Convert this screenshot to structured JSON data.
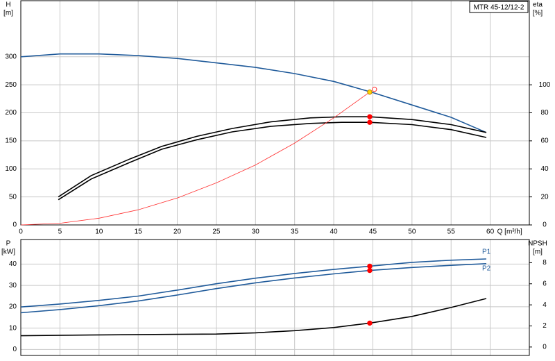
{
  "chart_data": [
    {
      "type": "line",
      "title": "MTR 45-12/12-2",
      "xlabel": "Q [m³/h]",
      "ylabel": [
        "H",
        "[m]"
      ],
      "y2label": [
        "eta",
        "[%]"
      ],
      "xlim": [
        0,
        65
      ],
      "xticks": [
        0,
        5,
        10,
        15,
        20,
        25,
        30,
        35,
        40,
        45,
        50,
        55,
        60
      ],
      "ylim": [
        0,
        400
      ],
      "yticks": [
        0,
        50,
        100,
        150,
        200,
        250,
        300
      ],
      "y2lim": [
        0,
        160
      ],
      "y2ticks": [
        0,
        20,
        40,
        60,
        80,
        100
      ],
      "grid": true,
      "series": [
        {
          "color": "#1f5a9a",
          "x": [
            0,
            5,
            10,
            15,
            20,
            25,
            30,
            35,
            40,
            45,
            50,
            55,
            59.5
          ],
          "values": [
            300,
            305,
            305,
            302,
            297,
            289,
            281,
            270,
            256,
            236,
            214,
            192,
            165
          ]
        },
        {
          "color": "#000000",
          "axis": "y2",
          "x": [
            4.8,
            9,
            14,
            18,
            22.5,
            27,
            32,
            37,
            41,
            44.6,
            50,
            55,
            59.5
          ],
          "values": [
            20,
            35.2,
            47.2,
            56,
            63.2,
            68.8,
            73.6,
            76.4,
            77.2,
            77.2,
            75.2,
            71.6,
            66
          ]
        },
        {
          "color": "#000000",
          "axis": "y2",
          "x": [
            4.8,
            9,
            14,
            18,
            22.5,
            27,
            32,
            37,
            41,
            44.6,
            50,
            55,
            59.5
          ],
          "values": [
            18,
            32.8,
            44.8,
            54,
            60.8,
            66.4,
            70.4,
            72.4,
            73.2,
            73.2,
            71.6,
            68,
            62.4
          ]
        },
        {
          "color": "#ff3030",
          "x": [
            0,
            5,
            10,
            15,
            20,
            25,
            30,
            35,
            40,
            44.6
          ],
          "values": [
            0,
            3,
            12,
            27,
            48,
            75,
            107,
            146,
            191,
            237
          ]
        }
      ],
      "markers": [
        {
          "x": 44.6,
          "y": 237,
          "color": "#ffd700"
        },
        {
          "x": 45.2,
          "y": 242,
          "color": "#ff3030",
          "hollow": true
        },
        {
          "x": 44.6,
          "y": 77.2,
          "axis": "y2",
          "color": "#ff0000"
        },
        {
          "x": 44.6,
          "y": 73.2,
          "axis": "y2",
          "color": "#ff0000"
        }
      ]
    },
    {
      "type": "line",
      "ylabel": [
        "P",
        "[kW]"
      ],
      "y2label": [
        "NPSH",
        "[m]"
      ],
      "xlim": [
        0,
        65
      ],
      "xticks": [
        0,
        5,
        10,
        15,
        20,
        25,
        30,
        35,
        40,
        45,
        50,
        55,
        60
      ],
      "ylim": [
        -2.8,
        51.5
      ],
      "yticks": [
        0,
        10,
        20,
        30,
        40
      ],
      "y2lim": [
        -0.8,
        10.2
      ],
      "y2ticks": [
        0,
        2,
        4,
        6,
        8
      ],
      "grid": true,
      "series": [
        {
          "name": "P1",
          "color": "#1f5a9a",
          "x": [
            0,
            5,
            10,
            15,
            20,
            25,
            30,
            35,
            40,
            44.6,
            50,
            55,
            59.5
          ],
          "values": [
            19.9,
            21.3,
            23,
            25,
            27.8,
            30.8,
            33.4,
            35.6,
            37.5,
            39,
            40.8,
            41.8,
            42.4
          ]
        },
        {
          "name": "P2",
          "color": "#1f5a9a",
          "x": [
            0,
            5,
            10,
            15,
            20,
            25,
            30,
            35,
            40,
            44.6,
            50,
            55,
            59.5
          ],
          "values": [
            17.2,
            18.7,
            20.5,
            22.7,
            25.5,
            28.5,
            31.2,
            33.5,
            35.4,
            37,
            38.4,
            39.4,
            40.2
          ]
        },
        {
          "color": "#000000",
          "axis": "y2",
          "x": [
            0,
            10,
            20,
            25,
            30,
            35,
            40,
            44.6,
            50,
            55,
            59.5
          ],
          "values": [
            1.07,
            1.15,
            1.2,
            1.23,
            1.35,
            1.55,
            1.85,
            2.27,
            2.9,
            3.75,
            4.6
          ]
        }
      ],
      "markers": [
        {
          "x": 44.6,
          "y": 39,
          "color": "#ff0000"
        },
        {
          "x": 44.6,
          "y": 37,
          "color": "#ff0000"
        },
        {
          "x": 44.6,
          "y": 2.27,
          "axis": "y2",
          "color": "#ff0000"
        }
      ]
    }
  ]
}
